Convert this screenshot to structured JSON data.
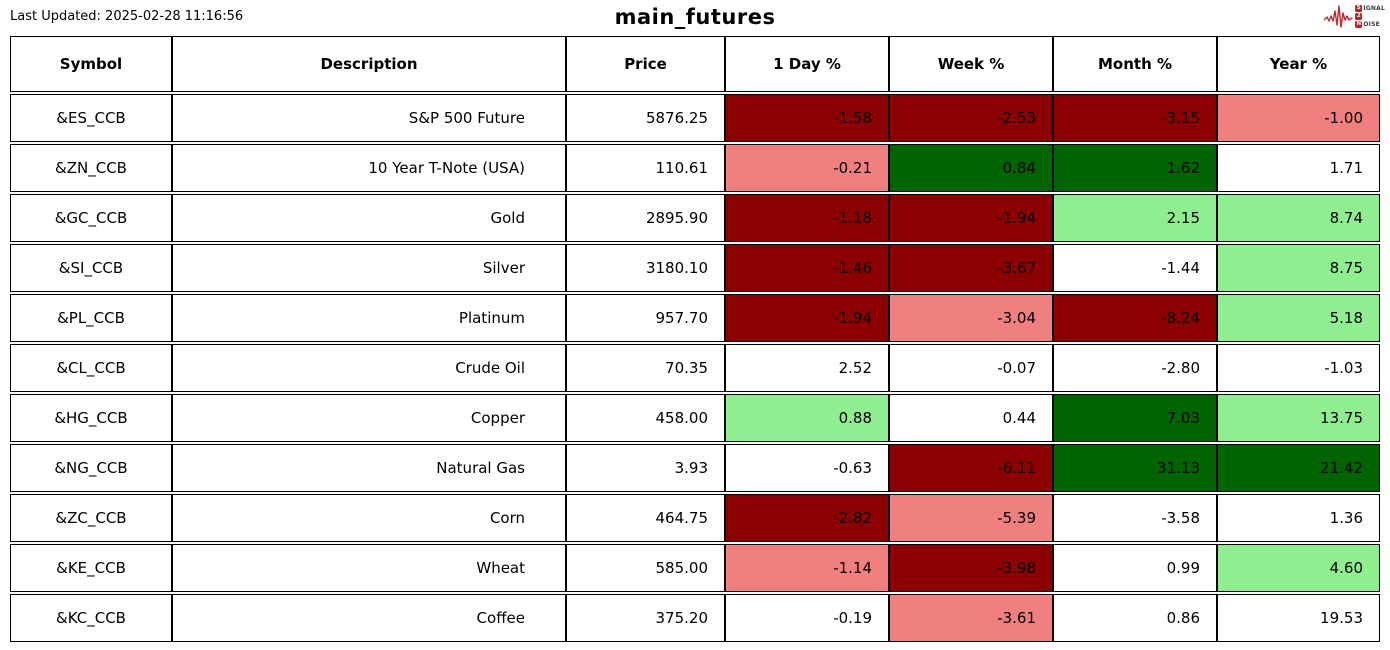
{
  "header": {
    "last_updated": "Last Updated: 2025-02-28 11:16:56",
    "title": "main_futures",
    "logo": {
      "words": [
        "SIGNAL",
        "2",
        "NOISE"
      ],
      "red": "#c4232b"
    }
  },
  "colors": {
    "darkred": "#8B0000",
    "lightcoral": "#F08080",
    "white": "#FFFFFF",
    "lightgreen": "#90EE90",
    "darkgreen": "#006400"
  },
  "chart_data": {
    "type": "table",
    "title": "main_futures",
    "columns": [
      "Symbol",
      "Description",
      "Price",
      "1 Day %",
      "Week %",
      "Month %",
      "Year %"
    ],
    "color_coding": {
      "darkred": "strong loss",
      "lightcoral": "mild loss",
      "white": "neutral",
      "lightgreen": "mild gain",
      "darkgreen": "strong gain"
    },
    "rows": [
      {
        "symbol": "&ES_CCB",
        "description": "S&P 500 Future",
        "price": "5876.25",
        "day": "-1.58",
        "day_bg": "darkred",
        "week": "-2.53",
        "week_bg": "darkred",
        "month": "-3.15",
        "month_bg": "darkred",
        "year": "-1.00",
        "year_bg": "lightcoral"
      },
      {
        "symbol": "&ZN_CCB",
        "description": "10 Year T-Note (USA)",
        "price": "110.61",
        "day": "-0.21",
        "day_bg": "lightcoral",
        "week": "0.84",
        "week_bg": "darkgreen",
        "month": "1.62",
        "month_bg": "darkgreen",
        "year": "1.71",
        "year_bg": "white"
      },
      {
        "symbol": "&GC_CCB",
        "description": "Gold",
        "price": "2895.90",
        "day": "-1.18",
        "day_bg": "darkred",
        "week": "-1.94",
        "week_bg": "darkred",
        "month": "2.15",
        "month_bg": "lightgreen",
        "year": "8.74",
        "year_bg": "lightgreen"
      },
      {
        "symbol": "&SI_CCB",
        "description": "Silver",
        "price": "3180.10",
        "day": "-1.46",
        "day_bg": "darkred",
        "week": "-3.67",
        "week_bg": "darkred",
        "month": "-1.44",
        "month_bg": "white",
        "year": "8.75",
        "year_bg": "lightgreen"
      },
      {
        "symbol": "&PL_CCB",
        "description": "Platinum",
        "price": "957.70",
        "day": "-1.94",
        "day_bg": "darkred",
        "week": "-3.04",
        "week_bg": "lightcoral",
        "month": "-8.24",
        "month_bg": "darkred",
        "year": "5.18",
        "year_bg": "lightgreen"
      },
      {
        "symbol": "&CL_CCB",
        "description": "Crude Oil",
        "price": "70.35",
        "day": "2.52",
        "day_bg": "white",
        "week": "-0.07",
        "week_bg": "white",
        "month": "-2.80",
        "month_bg": "white",
        "year": "-1.03",
        "year_bg": "white"
      },
      {
        "symbol": "&HG_CCB",
        "description": "Copper",
        "price": "458.00",
        "day": "0.88",
        "day_bg": "lightgreen",
        "week": "0.44",
        "week_bg": "white",
        "month": "7.03",
        "month_bg": "darkgreen",
        "year": "13.75",
        "year_bg": "lightgreen"
      },
      {
        "symbol": "&NG_CCB",
        "description": "Natural Gas",
        "price": "3.93",
        "day": "-0.63",
        "day_bg": "white",
        "week": "-6.11",
        "week_bg": "darkred",
        "month": "31.13",
        "month_bg": "darkgreen",
        "year": "21.42",
        "year_bg": "darkgreen"
      },
      {
        "symbol": "&ZC_CCB",
        "description": "Corn",
        "price": "464.75",
        "day": "-2.82",
        "day_bg": "darkred",
        "week": "-5.39",
        "week_bg": "lightcoral",
        "month": "-3.58",
        "month_bg": "white",
        "year": "1.36",
        "year_bg": "white"
      },
      {
        "symbol": "&KE_CCB",
        "description": "Wheat",
        "price": "585.00",
        "day": "-1.14",
        "day_bg": "lightcoral",
        "week": "-3.98",
        "week_bg": "darkred",
        "month": "0.99",
        "month_bg": "white",
        "year": "4.60",
        "year_bg": "lightgreen"
      },
      {
        "symbol": "&KC_CCB",
        "description": "Coffee",
        "price": "375.20",
        "day": "-0.19",
        "day_bg": "white",
        "week": "-3.61",
        "week_bg": "lightcoral",
        "month": "0.86",
        "month_bg": "white",
        "year": "19.53",
        "year_bg": "white"
      }
    ]
  }
}
